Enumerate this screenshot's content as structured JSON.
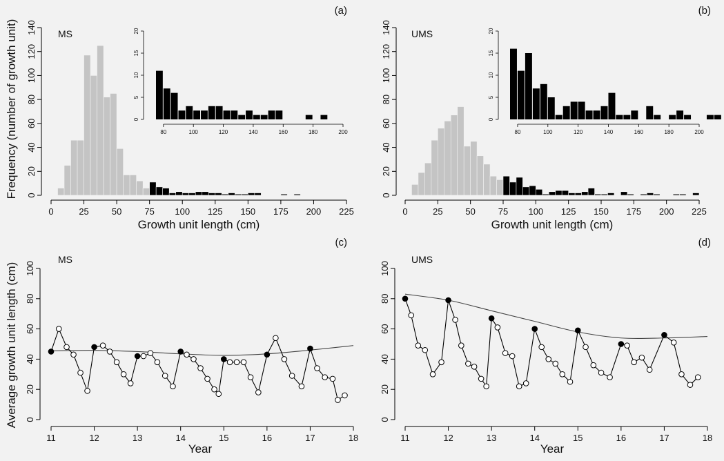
{
  "chart_data": [
    {
      "panel": "(a)",
      "label": "MS",
      "type": "bar",
      "ylabel": "Frequency (number of growth unit)",
      "xlabel": "Growth unit length (cm)",
      "xticks": [
        0,
        25,
        50,
        75,
        100,
        125,
        150,
        175,
        200,
        225
      ],
      "yticks": [
        0,
        20,
        40,
        60,
        80,
        100,
        120,
        140
      ],
      "xlim": [
        0,
        225
      ],
      "ylim": [
        0,
        140
      ],
      "bin_width": 5,
      "bins_gray": [
        [
          5,
          6
        ],
        [
          10,
          25
        ],
        [
          15,
          46
        ],
        [
          20,
          46
        ],
        [
          25,
          117
        ],
        [
          30,
          100
        ],
        [
          35,
          125
        ],
        [
          40,
          82
        ],
        [
          45,
          85
        ],
        [
          50,
          39
        ],
        [
          55,
          17
        ],
        [
          60,
          17
        ],
        [
          65,
          12
        ],
        [
          70,
          6
        ]
      ],
      "bins_black": [
        [
          75,
          11
        ],
        [
          80,
          7
        ],
        [
          85,
          6
        ],
        [
          90,
          2
        ],
        [
          95,
          3
        ],
        [
          100,
          2
        ],
        [
          105,
          2
        ],
        [
          110,
          3
        ],
        [
          115,
          3
        ],
        [
          120,
          2
        ],
        [
          125,
          2
        ],
        [
          130,
          1
        ],
        [
          135,
          2
        ],
        [
          140,
          1
        ],
        [
          145,
          1
        ],
        [
          150,
          2
        ],
        [
          155,
          2
        ],
        [
          175,
          1
        ],
        [
          185,
          1
        ]
      ],
      "inset": {
        "xticks": [
          80,
          100,
          120,
          140,
          160,
          180,
          200
        ],
        "yticks": [
          0,
          5,
          10,
          15,
          20
        ],
        "xlim": [
          75,
          200
        ],
        "ylim": [
          0,
          20
        ]
      }
    },
    {
      "panel": "(b)",
      "label": "UMS",
      "type": "bar",
      "xlabel": "Growth unit length (cm)",
      "xticks": [
        0,
        25,
        50,
        75,
        100,
        125,
        150,
        175,
        200,
        225
      ],
      "yticks": [
        0,
        20,
        40,
        60,
        80,
        100,
        120,
        140
      ],
      "xlim": [
        0,
        225
      ],
      "ylim": [
        0,
        140
      ],
      "bin_width": 5,
      "bins_gray": [
        [
          5,
          9
        ],
        [
          10,
          19
        ],
        [
          15,
          27
        ],
        [
          20,
          46
        ],
        [
          25,
          56
        ],
        [
          30,
          62
        ],
        [
          35,
          67
        ],
        [
          40,
          74
        ],
        [
          45,
          41
        ],
        [
          50,
          45
        ],
        [
          55,
          33
        ],
        [
          60,
          26
        ],
        [
          65,
          16
        ],
        [
          70,
          13
        ]
      ],
      "bins_black": [
        [
          75,
          16
        ],
        [
          80,
          11
        ],
        [
          85,
          15
        ],
        [
          90,
          7
        ],
        [
          95,
          8
        ],
        [
          100,
          5
        ],
        [
          105,
          1
        ],
        [
          110,
          3
        ],
        [
          115,
          4
        ],
        [
          120,
          4
        ],
        [
          125,
          2
        ],
        [
          130,
          2
        ],
        [
          135,
          3
        ],
        [
          140,
          6
        ],
        [
          145,
          1
        ],
        [
          150,
          1
        ],
        [
          155,
          2
        ],
        [
          165,
          3
        ],
        [
          170,
          1
        ],
        [
          180,
          1
        ],
        [
          185,
          2
        ],
        [
          190,
          1
        ],
        [
          205,
          1
        ],
        [
          210,
          1
        ],
        [
          220,
          2
        ]
      ],
      "inset": {
        "xticks": [
          80,
          100,
          120,
          140,
          160,
          180,
          200
        ],
        "yticks": [
          0,
          5,
          10,
          15,
          20
        ],
        "xlim": [
          75,
          200
        ],
        "ylim": [
          0,
          20
        ]
      }
    },
    {
      "panel": "(c)",
      "label": "MS",
      "type": "line",
      "ylabel": "Average growth unit length (cm)",
      "xlabel": "Year",
      "xticks": [
        11,
        12,
        13,
        14,
        15,
        16,
        17,
        18
      ],
      "yticks": [
        0,
        20,
        40,
        60,
        80,
        100
      ],
      "xlim": [
        11,
        18
      ],
      "ylim": [
        0,
        100
      ],
      "points": [
        [
          11,
          45,
          1
        ],
        [
          11.18,
          60,
          0
        ],
        [
          11.36,
          48,
          0
        ],
        [
          11.52,
          43,
          0
        ],
        [
          11.68,
          31,
          0
        ],
        [
          11.84,
          19,
          0
        ],
        [
          12,
          48,
          1
        ],
        [
          12.2,
          49,
          0
        ],
        [
          12.36,
          45,
          0
        ],
        [
          12.52,
          38,
          0
        ],
        [
          12.68,
          30,
          0
        ],
        [
          12.84,
          24,
          0
        ],
        [
          13,
          42,
          1
        ],
        [
          13.14,
          42,
          0
        ],
        [
          13.3,
          44,
          0
        ],
        [
          13.46,
          38,
          0
        ],
        [
          13.64,
          29,
          0
        ],
        [
          13.82,
          22,
          0
        ],
        [
          14,
          45,
          1
        ],
        [
          14.14,
          43,
          0
        ],
        [
          14.3,
          40,
          0
        ],
        [
          14.46,
          34,
          0
        ],
        [
          14.62,
          27,
          0
        ],
        [
          14.78,
          20,
          0
        ],
        [
          14.88,
          17,
          0
        ],
        [
          15,
          40,
          1
        ],
        [
          15.14,
          38,
          0
        ],
        [
          15.3,
          38,
          0
        ],
        [
          15.46,
          38,
          0
        ],
        [
          15.62,
          28,
          0
        ],
        [
          15.8,
          18,
          0
        ],
        [
          16,
          43,
          1
        ],
        [
          16.2,
          54,
          0
        ],
        [
          16.4,
          40,
          0
        ],
        [
          16.58,
          29,
          0
        ],
        [
          16.8,
          22,
          0
        ],
        [
          17,
          47,
          1
        ],
        [
          17.16,
          34,
          0
        ],
        [
          17.34,
          28,
          0
        ],
        [
          17.52,
          27,
          0
        ],
        [
          17.64,
          13,
          0
        ],
        [
          17.8,
          16,
          0
        ]
      ],
      "trend": [
        [
          11,
          45.5
        ],
        [
          12,
          45.8
        ],
        [
          13,
          45
        ],
        [
          14,
          43.5
        ],
        [
          15,
          42.5
        ],
        [
          16,
          43.5
        ],
        [
          17,
          46
        ],
        [
          18,
          49
        ]
      ]
    },
    {
      "panel": "(d)",
      "label": "UMS",
      "type": "line",
      "xlabel": "Year",
      "xticks": [
        11,
        12,
        13,
        14,
        15,
        16,
        17,
        18
      ],
      "yticks": [
        0,
        20,
        40,
        60,
        80,
        100
      ],
      "xlim": [
        11,
        18
      ],
      "ylim": [
        0,
        100
      ],
      "points": [
        [
          11,
          80,
          1
        ],
        [
          11.14,
          69,
          0
        ],
        [
          11.3,
          49,
          0
        ],
        [
          11.46,
          46,
          0
        ],
        [
          11.64,
          30,
          0
        ],
        [
          11.84,
          38,
          0
        ],
        [
          12,
          79,
          1
        ],
        [
          12.16,
          66,
          0
        ],
        [
          12.3,
          49,
          0
        ],
        [
          12.46,
          37,
          0
        ],
        [
          12.6,
          35,
          0
        ],
        [
          12.76,
          27,
          0
        ],
        [
          12.88,
          22,
          0
        ],
        [
          13,
          67,
          1
        ],
        [
          13.14,
          61,
          0
        ],
        [
          13.32,
          44,
          0
        ],
        [
          13.48,
          42,
          0
        ],
        [
          13.64,
          22,
          0
        ],
        [
          13.8,
          24,
          0
        ],
        [
          14,
          60,
          1
        ],
        [
          14.16,
          48,
          0
        ],
        [
          14.32,
          40,
          0
        ],
        [
          14.48,
          37,
          0
        ],
        [
          14.64,
          30,
          0
        ],
        [
          14.82,
          25,
          0
        ],
        [
          15,
          59,
          1
        ],
        [
          15.18,
          48,
          0
        ],
        [
          15.36,
          36,
          0
        ],
        [
          15.54,
          31,
          0
        ],
        [
          15.74,
          28,
          0
        ],
        [
          16,
          50,
          1
        ],
        [
          16.14,
          49,
          0
        ],
        [
          16.3,
          38,
          0
        ],
        [
          16.48,
          41,
          0
        ],
        [
          16.66,
          33,
          0
        ],
        [
          17,
          56,
          1
        ],
        [
          17.22,
          51,
          0
        ],
        [
          17.4,
          30,
          0
        ],
        [
          17.6,
          23,
          0
        ],
        [
          17.78,
          28,
          0
        ]
      ],
      "trend": [
        [
          11,
          83
        ],
        [
          12,
          79
        ],
        [
          13,
          72
        ],
        [
          14,
          65
        ],
        [
          15,
          58
        ],
        [
          16,
          54
        ],
        [
          17,
          54
        ],
        [
          18,
          55
        ]
      ]
    }
  ]
}
